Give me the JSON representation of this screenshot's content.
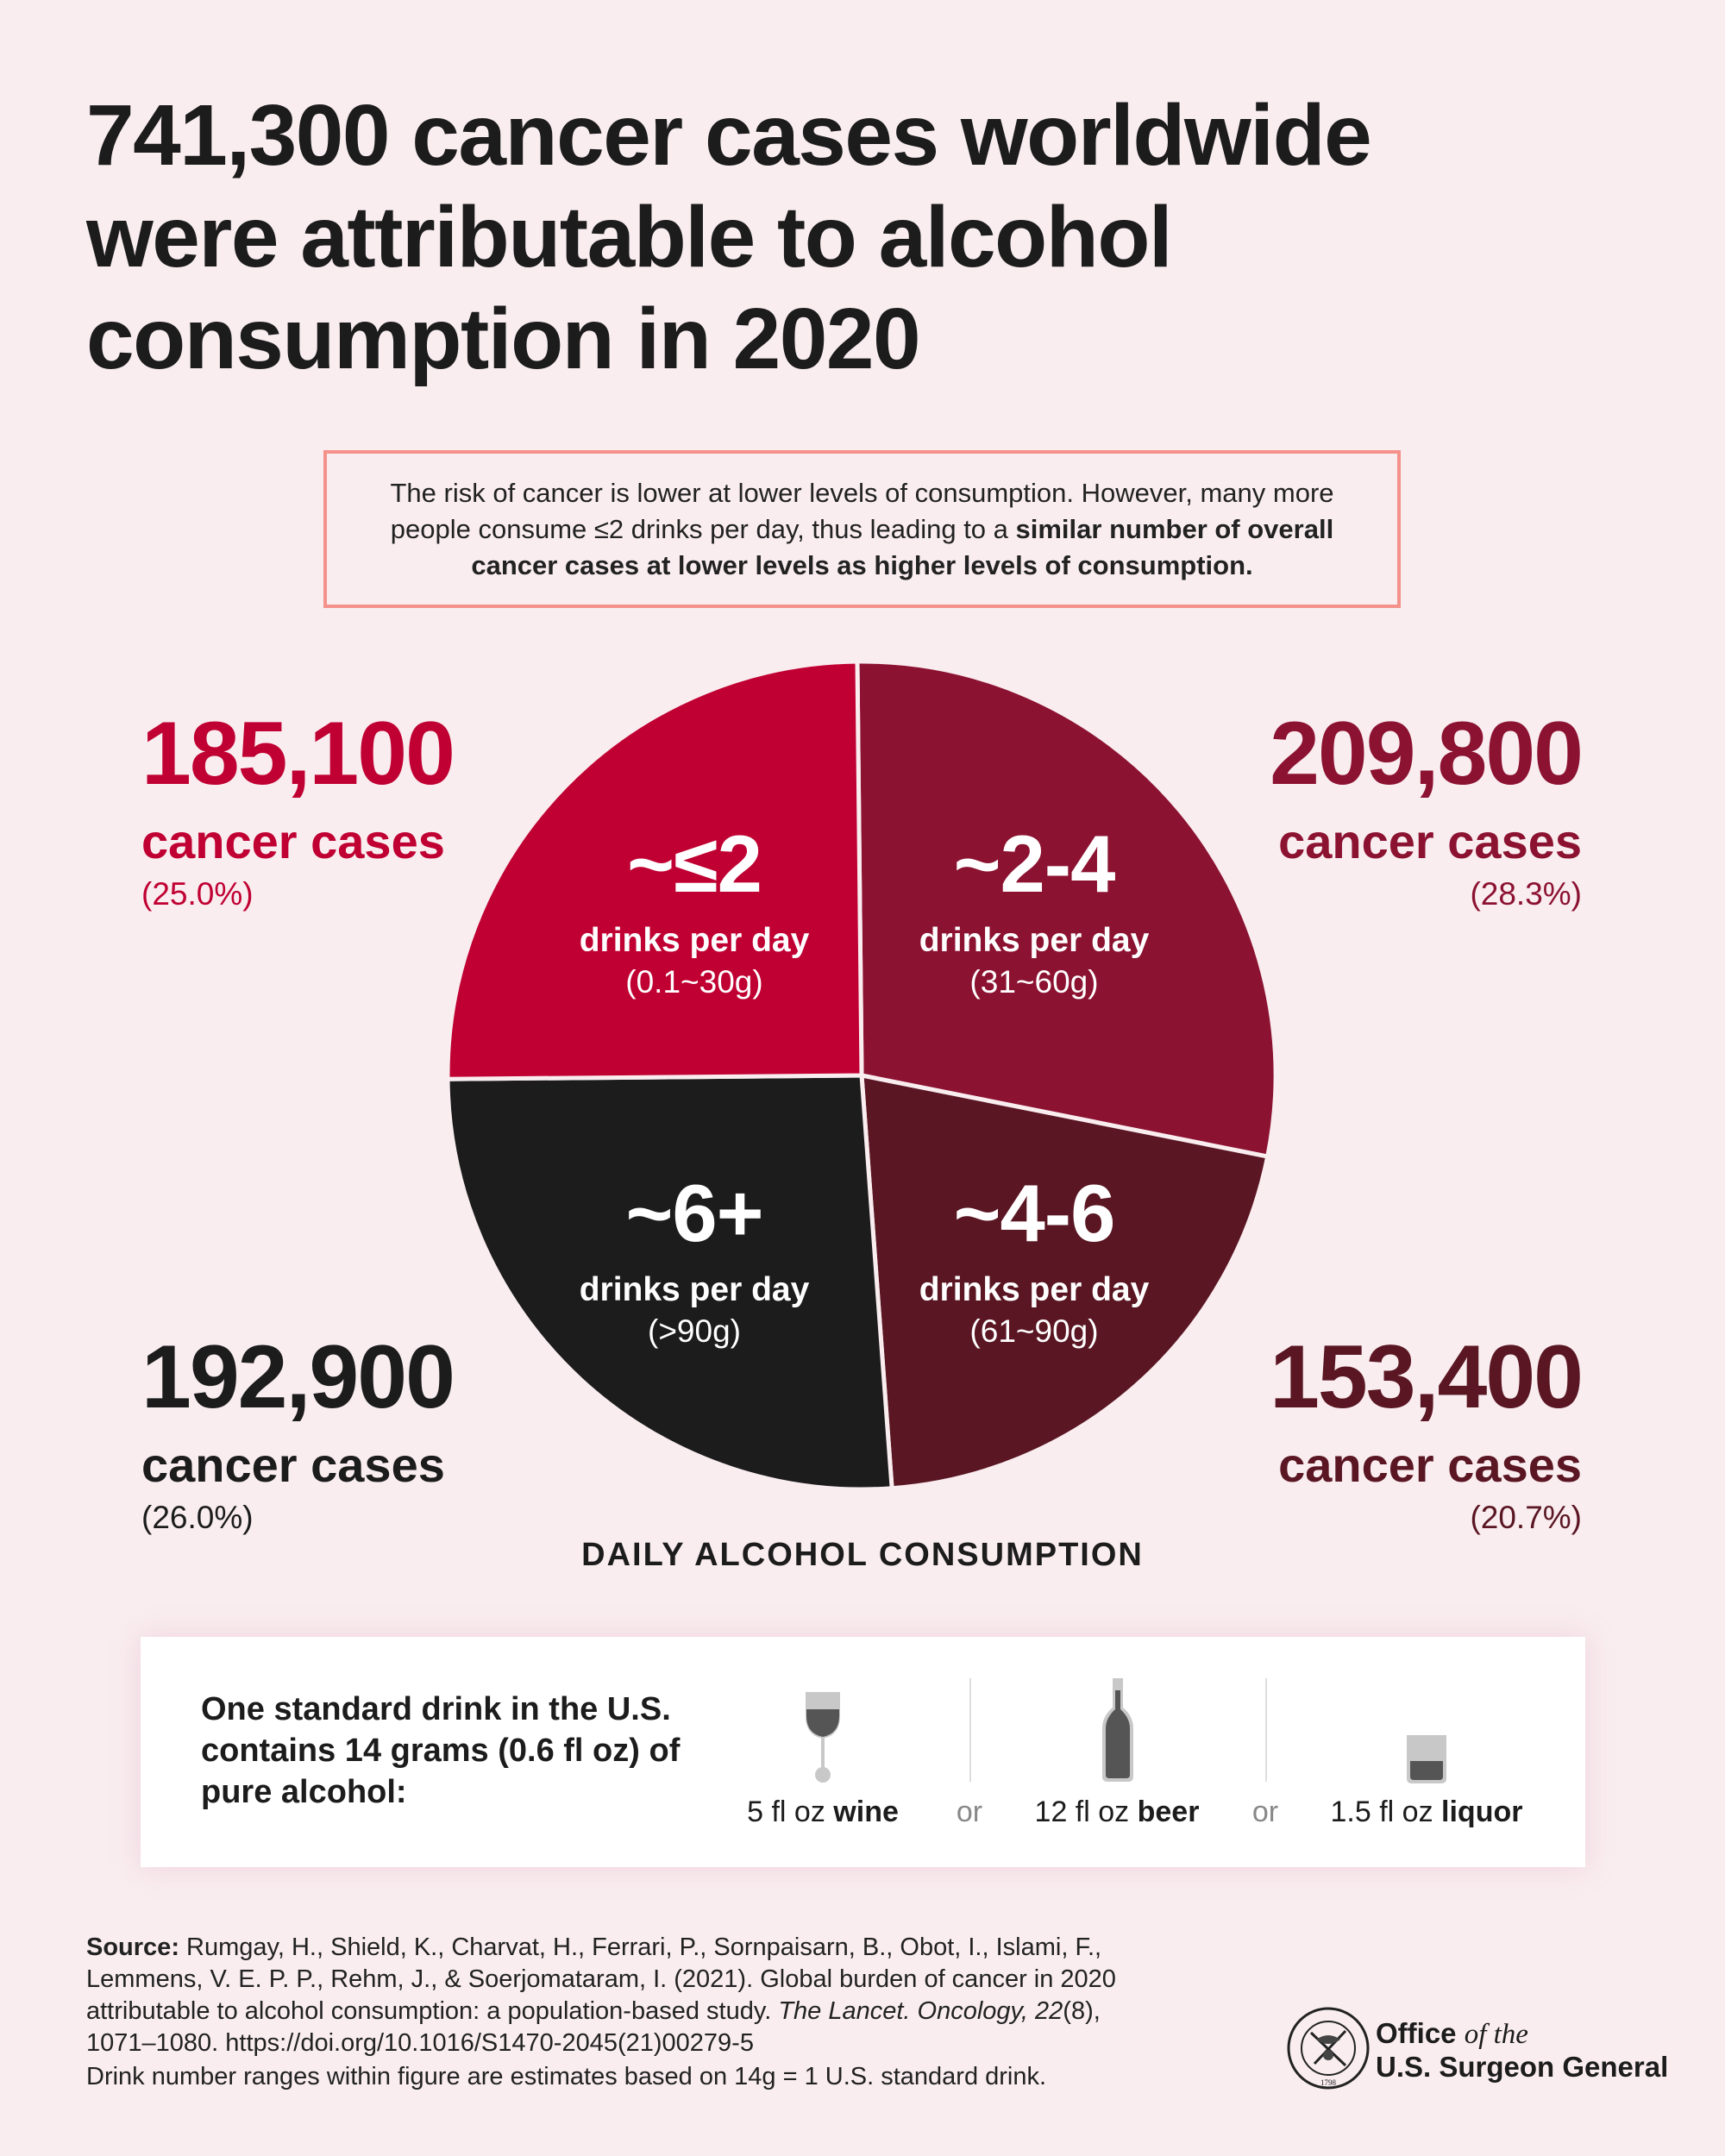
{
  "title": {
    "lines": [
      "741,300 cancer cases worldwide",
      "were attributable to alcohol",
      "consumption in 2020"
    ]
  },
  "note": {
    "text_regular": "The risk of cancer is lower at lower levels of consumption. However, many more people consume ≤2 drinks per day, thus leading to a ",
    "text_bold": "similar number of overall cancer cases at lower levels as higher levels of consumption."
  },
  "chart_data": {
    "type": "pie",
    "title": "741,300 cancer cases worldwide were attributable to alcohol consumption in 2020",
    "xlabel": "DAILY ALCOHOL CONSUMPTION",
    "categories": [
      "~2-4",
      "~4-6",
      "~6+",
      "~≤2"
    ],
    "values": [
      209800,
      153400,
      192900,
      185100
    ],
    "slices": [
      {
        "label": "~2-4",
        "sub": "drinks per day",
        "grams": "(31~60g)",
        "cases": "209,800",
        "cases_label": "cancer cases",
        "percent": "(28.3%)",
        "value": 209800,
        "color": "#8c1231"
      },
      {
        "label": "~4-6",
        "sub": "drinks per day",
        "grams": "(61~90g)",
        "cases": "153,400",
        "cases_label": "cancer cases",
        "percent": "(20.7%)",
        "value": 153400,
        "color": "#5a1622"
      },
      {
        "label": "~6+",
        "sub": "drinks per day",
        "grams": "(>90g)",
        "cases": "192,900",
        "cases_label": "cancer cases",
        "percent": "(26.0%)",
        "value": 192900,
        "color": "#1c1c1c"
      },
      {
        "label": "~≤2",
        "sub": "drinks per day",
        "grams": "(0.1~30g)",
        "cases": "185,100",
        "cases_label": "cancer cases",
        "percent": "(25.0%)",
        "value": 185100,
        "color": "#c00032"
      }
    ],
    "start_direction": "12 o'clock, clockwise",
    "legend": "none"
  },
  "standard_drink": {
    "heading": "One standard drink in the U.S. contains 14 grams (0.6 fl oz) of pure alcohol:",
    "items": [
      {
        "amount": "5 fl oz ",
        "name": "wine",
        "icon": "wine-glass-icon"
      },
      {
        "amount": "12 fl oz ",
        "name": "beer",
        "icon": "beer-bottle-icon"
      },
      {
        "amount": "1.5 fl oz ",
        "name": "liquor",
        "icon": "liquor-glass-icon"
      }
    ],
    "separator": "or"
  },
  "source": {
    "label": "Source:",
    "text": " Rumgay, H., Shield, K., Charvat, H., Ferrari, P., Sornpaisarn, B., Obot, I., Islami, F., Lemmens, V. E. P. P., Rehm, J., & Soerjomataram, I. (2021). Global burden of cancer in 2020 attributable to alcohol consumption: a population-based study. ",
    "journal": "The Lancet. Oncology, 22",
    "rest": "(8), 1071–1080. https://doi.org/10.1016/S1470-2045(21)00279-5",
    "drink_note": "Drink number ranges within figure are estimates based on 14g = 1 U.S. standard drink."
  },
  "logo": {
    "line1_bold": "Office ",
    "line1_italic": "of the",
    "line2": "U.S. Surgeon General",
    "seal_text": "U.S. PUBLIC HEALTH SERVICE · 1798 ·"
  },
  "colors": {
    "background": "#f9edf0",
    "note_border": "#f4918a"
  }
}
